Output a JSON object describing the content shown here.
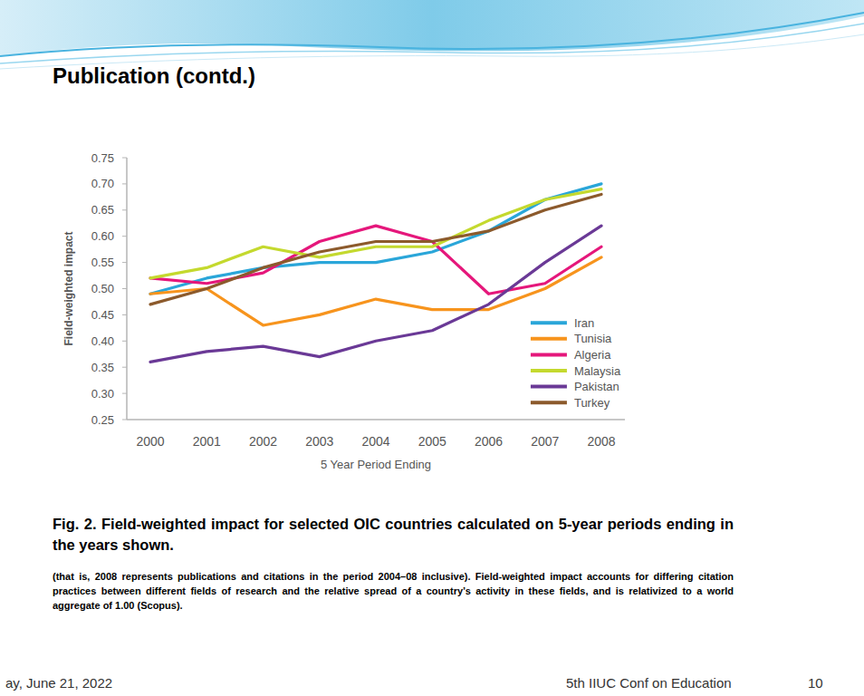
{
  "slide": {
    "title": "Publication (contd.)",
    "caption": "Fig. 2. Field-weighted impact for selected OIC countries calculated on 5-year periods ending in the years shown.",
    "note": "(that is, 2008 represents publications and citations in the period 2004–08 inclusive). Field-weighted impact accounts for differing citation practices between different fields of research and the relative spread of a country’s activity in these fields, and is relativized to a world aggregate of 1.00 (Scopus).",
    "footer_left": "ay, June 21, 2022",
    "footer_center": "5th IIUC Conf on Education",
    "footer_page": "10"
  },
  "chart_data": {
    "type": "line",
    "x_label": "5 Year Period Ending",
    "y_label": "Field-weighted impact",
    "categories": [
      "2000",
      "2001",
      "2002",
      "2003",
      "2004",
      "2005",
      "2006",
      "2007",
      "2008"
    ],
    "series": [
      {
        "name": "Iran",
        "color": "#2aa6d9",
        "values": [
          0.49,
          0.52,
          0.54,
          0.55,
          0.55,
          0.57,
          0.61,
          0.67,
          0.7
        ]
      },
      {
        "name": "Tunisia",
        "color": "#f7941d",
        "values": [
          0.49,
          0.5,
          0.43,
          0.45,
          0.48,
          0.46,
          0.46,
          0.5,
          0.56
        ]
      },
      {
        "name": "Algeria",
        "color": "#e5177b",
        "values": [
          0.52,
          0.51,
          0.53,
          0.59,
          0.62,
          0.59,
          0.49,
          0.51,
          0.58
        ]
      },
      {
        "name": "Malaysia",
        "color": "#c4d92e",
        "values": [
          0.52,
          0.54,
          0.58,
          0.56,
          0.58,
          0.58,
          0.63,
          0.67,
          0.69
        ]
      },
      {
        "name": "Pakistan",
        "color": "#6a3996",
        "values": [
          0.36,
          0.38,
          0.39,
          0.37,
          0.4,
          0.42,
          0.47,
          0.55,
          0.62
        ]
      },
      {
        "name": "Turkey",
        "color": "#8c5a2c",
        "values": [
          0.47,
          0.5,
          0.54,
          0.57,
          0.59,
          0.59,
          0.61,
          0.65,
          0.68
        ]
      }
    ],
    "ylim": [
      0.25,
      0.75
    ],
    "yticks": [
      0.25,
      {
        "value": 0.3,
        "label": "0.30"
      },
      0.35,
      {
        "value": 0.4,
        "label": "0.40"
      },
      0.45,
      {
        "value": 0.5,
        "label": "0.50"
      },
      0.55,
      {
        "value": 0.6,
        "label": "0.60"
      },
      0.65,
      {
        "value": 0.7,
        "label": "0.70"
      },
      0.75
    ],
    "grid": false,
    "legend": "lower right"
  }
}
